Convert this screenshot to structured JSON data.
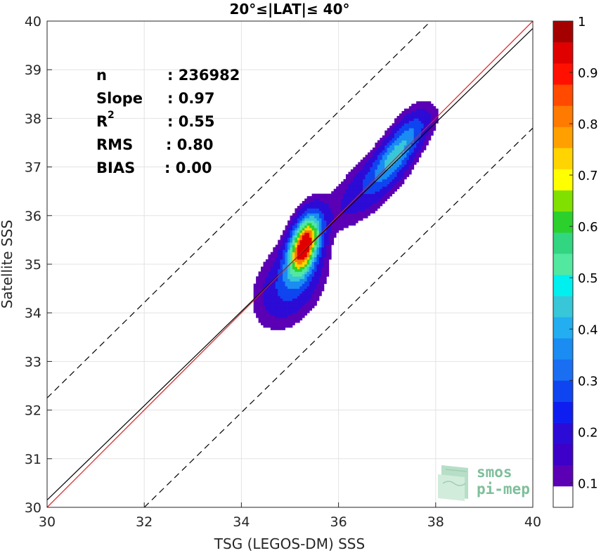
{
  "chart_data": {
    "type": "heatmap",
    "title": "20°≤|LAT|≤ 40°",
    "xlabel": "TSG (LEGOS-DM) SSS",
    "ylabel": "Satellite SSS",
    "xlim": [
      30,
      40
    ],
    "ylim": [
      30,
      40
    ],
    "xticks": [
      "30",
      "32",
      "34",
      "36",
      "38",
      "40"
    ],
    "yticks": [
      "30",
      "31",
      "32",
      "33",
      "34",
      "35",
      "36",
      "37",
      "38",
      "39",
      "40"
    ],
    "grid": true,
    "stats": [
      {
        "label": "n",
        "value": ": 236982"
      },
      {
        "label": "Slope",
        "value": ": 0.97"
      },
      {
        "label": "R",
        "sup": "2",
        "value": ": 0.55"
      },
      {
        "label": "RMS",
        "value": ": 0.80"
      },
      {
        "label": "BIAS",
        "value": ": 0.00"
      }
    ],
    "lines": [
      {
        "name": "one-to-one",
        "color": "#000000",
        "dash": false,
        "points": [
          [
            30,
            30.15
          ],
          [
            40,
            39.85
          ]
        ]
      },
      {
        "name": "regression",
        "color": "#e41a1c",
        "dash": false,
        "points": [
          [
            30,
            30
          ],
          [
            40,
            40
          ]
        ]
      },
      {
        "name": "upper-bound",
        "color": "#000000",
        "dash": true,
        "points": [
          [
            30,
            32.25
          ],
          [
            37.9,
            40
          ]
        ]
      },
      {
        "name": "lower-bound",
        "color": "#000000",
        "dash": true,
        "points": [
          [
            32,
            30
          ],
          [
            40,
            37.8
          ]
        ]
      }
    ],
    "density": {
      "levels": [
        0.05,
        0.1,
        0.2,
        0.3,
        0.4,
        0.5,
        0.6,
        0.7,
        0.8,
        0.9
      ],
      "colors": [
        "#5b00b5",
        "#2d0bd6",
        "#0f45f0",
        "#1a8cf2",
        "#37c7d8",
        "#52e8a0",
        "#2cd02c",
        "#ffd400",
        "#ff7a00",
        "#e00000"
      ],
      "clusters": [
        {
          "x": 35.3,
          "y": 35.4,
          "sx": 0.22,
          "sy": 0.42,
          "rho": 0.45,
          "amp": 1.0
        },
        {
          "x": 35.0,
          "y": 34.6,
          "sx": 0.45,
          "sy": 0.55,
          "rho": 0.35,
          "amp": 0.22
        },
        {
          "x": 37.2,
          "y": 37.3,
          "sx": 0.35,
          "sy": 0.45,
          "rho": 0.75,
          "amp": 0.38
        },
        {
          "x": 36.6,
          "y": 36.6,
          "sx": 0.55,
          "sy": 0.55,
          "rho": 0.7,
          "amp": 0.16
        },
        {
          "x": 37.6,
          "y": 37.9,
          "sx": 0.3,
          "sy": 0.3,
          "rho": 0.3,
          "amp": 0.08
        }
      ]
    },
    "colorbar": {
      "ticks": [
        "0.1",
        "0.2",
        "0.3",
        "0.4",
        "0.5",
        "0.6",
        "0.7",
        "0.8",
        "0.9",
        "1"
      ],
      "segments": [
        "#ffffff",
        "#5b00b5",
        "#3c00c8",
        "#2d0bd6",
        "#0f1ef0",
        "#0f45f0",
        "#1a6ef2",
        "#1a8cf2",
        "#22aef0",
        "#37c7d8",
        "#00f0f0",
        "#52e8a0",
        "#33d680",
        "#2cd02c",
        "#80e000",
        "#ffff00",
        "#ffd400",
        "#ffa000",
        "#ff7a00",
        "#ff4a00",
        "#ff1000",
        "#e00000",
        "#a50000"
      ]
    },
    "logo": {
      "line1": "smos",
      "line2": "pi-mep"
    }
  }
}
